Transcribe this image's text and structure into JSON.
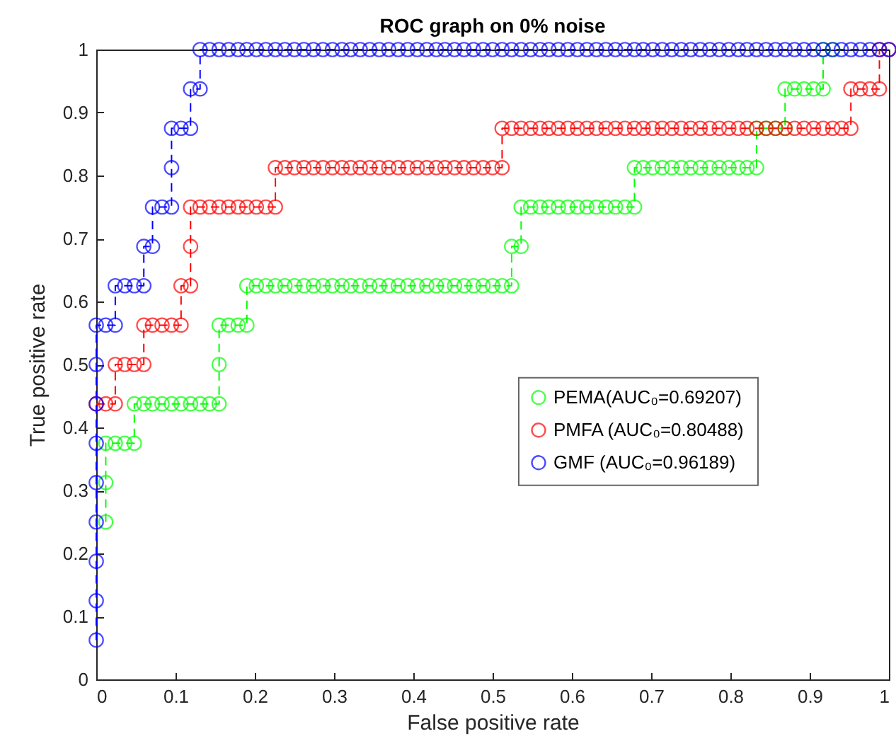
{
  "chart_data": {
    "type": "line",
    "title": "ROC graph on 0% noise",
    "xlabel": "False positive rate",
    "ylabel": "True positive rate",
    "xlim": [
      0,
      1
    ],
    "ylim": [
      0,
      1
    ],
    "xticks": [
      0,
      0.1,
      0.2,
      0.3,
      0.4,
      0.5,
      0.6,
      0.7,
      0.8,
      0.9,
      1
    ],
    "yticks": [
      0,
      0.1,
      0.2,
      0.3,
      0.4,
      0.5,
      0.6,
      0.7,
      0.8,
      0.9,
      1
    ],
    "grid": false,
    "legend": "right",
    "marker": "circle",
    "line_style": "dashed",
    "series": [
      {
        "name": "PEMA(AUC₀=0.69207)",
        "color": "#00ff00",
        "x": [
          0.012,
          0.012,
          0.012,
          0.024,
          0.036,
          0.048,
          0.048,
          0.06,
          0.071,
          0.083,
          0.095,
          0.107,
          0.119,
          0.131,
          0.143,
          0.155,
          0.155,
          0.155,
          0.167,
          0.179,
          0.19,
          0.19,
          0.202,
          0.214,
          0.226,
          0.238,
          0.25,
          0.262,
          0.274,
          0.286,
          0.298,
          0.31,
          0.321,
          0.333,
          0.345,
          0.357,
          0.369,
          0.381,
          0.393,
          0.405,
          0.417,
          0.429,
          0.44,
          0.452,
          0.464,
          0.476,
          0.488,
          0.5,
          0.512,
          0.524,
          0.524,
          0.536,
          0.536,
          0.548,
          0.56,
          0.571,
          0.583,
          0.595,
          0.607,
          0.619,
          0.631,
          0.643,
          0.655,
          0.667,
          0.679,
          0.679,
          0.69,
          0.702,
          0.714,
          0.726,
          0.738,
          0.75,
          0.762,
          0.774,
          0.786,
          0.798,
          0.81,
          0.821,
          0.833,
          0.833,
          0.845,
          0.857,
          0.869,
          0.869,
          0.881,
          0.893,
          0.905,
          0.917,
          0.917,
          0.929
        ],
        "values": [
          0.25,
          0.3125,
          0.375,
          0.375,
          0.375,
          0.375,
          0.4375,
          0.4375,
          0.4375,
          0.4375,
          0.4375,
          0.4375,
          0.4375,
          0.4375,
          0.4375,
          0.4375,
          0.5,
          0.5625,
          0.5625,
          0.5625,
          0.5625,
          0.625,
          0.625,
          0.625,
          0.625,
          0.625,
          0.625,
          0.625,
          0.625,
          0.625,
          0.625,
          0.625,
          0.625,
          0.625,
          0.625,
          0.625,
          0.625,
          0.625,
          0.625,
          0.625,
          0.625,
          0.625,
          0.625,
          0.625,
          0.625,
          0.625,
          0.625,
          0.625,
          0.625,
          0.625,
          0.6875,
          0.6875,
          0.75,
          0.75,
          0.75,
          0.75,
          0.75,
          0.75,
          0.75,
          0.75,
          0.75,
          0.75,
          0.75,
          0.75,
          0.75,
          0.8125,
          0.8125,
          0.8125,
          0.8125,
          0.8125,
          0.8125,
          0.8125,
          0.8125,
          0.8125,
          0.8125,
          0.8125,
          0.8125,
          0.8125,
          0.8125,
          0.875,
          0.875,
          0.875,
          0.875,
          0.9375,
          0.9375,
          0.9375,
          0.9375,
          0.9375,
          1,
          1
        ]
      },
      {
        "name": "PMFA (AUC₀=0.80488)",
        "color": "#ff0000",
        "x": [
          0,
          0.012,
          0.024,
          0.024,
          0.036,
          0.048,
          0.06,
          0.06,
          0.071,
          0.083,
          0.095,
          0.107,
          0.107,
          0.119,
          0.119,
          0.119,
          0.131,
          0.143,
          0.155,
          0.167,
          0.179,
          0.19,
          0.202,
          0.214,
          0.226,
          0.226,
          0.238,
          0.25,
          0.262,
          0.274,
          0.286,
          0.298,
          0.31,
          0.321,
          0.333,
          0.345,
          0.357,
          0.369,
          0.381,
          0.393,
          0.405,
          0.417,
          0.429,
          0.44,
          0.452,
          0.464,
          0.476,
          0.488,
          0.5,
          0.512,
          0.512,
          0.524,
          0.536,
          0.548,
          0.56,
          0.571,
          0.583,
          0.595,
          0.607,
          0.619,
          0.631,
          0.643,
          0.655,
          0.667,
          0.679,
          0.69,
          0.702,
          0.714,
          0.726,
          0.738,
          0.75,
          0.762,
          0.774,
          0.786,
          0.798,
          0.81,
          0.821,
          0.833,
          0.845,
          0.857,
          0.869,
          0.881,
          0.893,
          0.905,
          0.917,
          0.929,
          0.94,
          0.952,
          0.952,
          0.964,
          0.976,
          0.988,
          0.988,
          1
        ],
        "values": [
          0.4375,
          0.4375,
          0.4375,
          0.5,
          0.5,
          0.5,
          0.5,
          0.5625,
          0.5625,
          0.5625,
          0.5625,
          0.5625,
          0.625,
          0.625,
          0.6875,
          0.75,
          0.75,
          0.75,
          0.75,
          0.75,
          0.75,
          0.75,
          0.75,
          0.75,
          0.75,
          0.8125,
          0.8125,
          0.8125,
          0.8125,
          0.8125,
          0.8125,
          0.8125,
          0.8125,
          0.8125,
          0.8125,
          0.8125,
          0.8125,
          0.8125,
          0.8125,
          0.8125,
          0.8125,
          0.8125,
          0.8125,
          0.8125,
          0.8125,
          0.8125,
          0.8125,
          0.8125,
          0.8125,
          0.8125,
          0.875,
          0.875,
          0.875,
          0.875,
          0.875,
          0.875,
          0.875,
          0.875,
          0.875,
          0.875,
          0.875,
          0.875,
          0.875,
          0.875,
          0.875,
          0.875,
          0.875,
          0.875,
          0.875,
          0.875,
          0.875,
          0.875,
          0.875,
          0.875,
          0.875,
          0.875,
          0.875,
          0.875,
          0.875,
          0.875,
          0.875,
          0.875,
          0.875,
          0.875,
          0.875,
          0.875,
          0.875,
          0.875,
          0.9375,
          0.9375,
          0.9375,
          0.9375,
          1,
          1
        ]
      },
      {
        "name": "GMF (AUC₀=0.96189)",
        "color": "#0000ff",
        "x": [
          0,
          0,
          0,
          0,
          0,
          0,
          0,
          0,
          0,
          0.012,
          0.024,
          0.024,
          0.036,
          0.048,
          0.06,
          0.06,
          0.071,
          0.071,
          0.083,
          0.095,
          0.095,
          0.095,
          0.107,
          0.119,
          0.119,
          0.131,
          0.131,
          0.143,
          0.155,
          0.167,
          0.179,
          0.19,
          0.202,
          0.214,
          0.226,
          0.238,
          0.25,
          0.262,
          0.274,
          0.286,
          0.298,
          0.31,
          0.321,
          0.333,
          0.345,
          0.357,
          0.369,
          0.381,
          0.393,
          0.405,
          0.417,
          0.429,
          0.44,
          0.452,
          0.464,
          0.476,
          0.488,
          0.5,
          0.512,
          0.524,
          0.536,
          0.548,
          0.56,
          0.571,
          0.583,
          0.595,
          0.607,
          0.619,
          0.631,
          0.643,
          0.655,
          0.667,
          0.679,
          0.69,
          0.702,
          0.714,
          0.726,
          0.738,
          0.75,
          0.762,
          0.774,
          0.786,
          0.798,
          0.81,
          0.821,
          0.833,
          0.845,
          0.857,
          0.869,
          0.881,
          0.893,
          0.905,
          0.917,
          0.929,
          0.94,
          0.952,
          0.964,
          0.976,
          0.988,
          1
        ],
        "values": [
          0.0625,
          0.125,
          0.1875,
          0.25,
          0.3125,
          0.375,
          0.4375,
          0.5,
          0.5625,
          0.5625,
          0.5625,
          0.625,
          0.625,
          0.625,
          0.625,
          0.6875,
          0.6875,
          0.75,
          0.75,
          0.75,
          0.8125,
          0.875,
          0.875,
          0.875,
          0.9375,
          0.9375,
          1,
          1,
          1,
          1,
          1,
          1,
          1,
          1,
          1,
          1,
          1,
          1,
          1,
          1,
          1,
          1,
          1,
          1,
          1,
          1,
          1,
          1,
          1,
          1,
          1,
          1,
          1,
          1,
          1,
          1,
          1,
          1,
          1,
          1,
          1,
          1,
          1,
          1,
          1,
          1,
          1,
          1,
          1,
          1,
          1,
          1,
          1,
          1,
          1,
          1,
          1,
          1,
          1,
          1,
          1,
          1,
          1,
          1,
          1,
          1,
          1,
          1,
          1,
          1,
          1,
          1,
          1,
          1,
          1,
          1,
          1,
          1,
          1,
          1
        ]
      }
    ]
  }
}
